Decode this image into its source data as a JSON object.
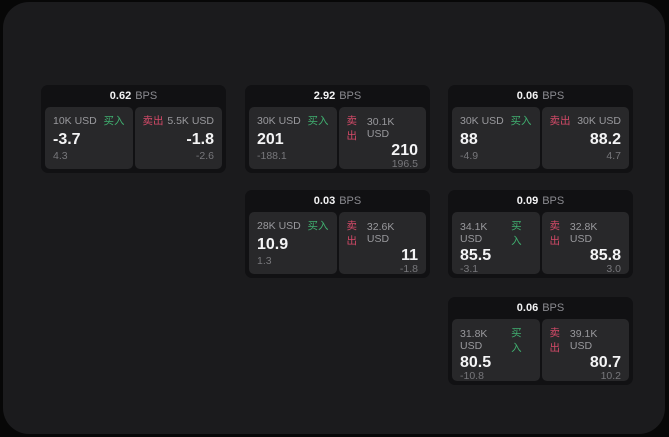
{
  "labels": {
    "bps_unit": "BPS",
    "buy": "买入",
    "sell": "卖出"
  },
  "colors": {
    "background": "#070707",
    "panel": "#1b1b1d",
    "card": "#111113",
    "tile": "#28282a",
    "buy_green": "#40b070",
    "sell_red": "#d44a68",
    "text_primary": "#f4f4f5",
    "text_muted": "#99999d",
    "text_dim": "#77777b"
  },
  "cards": [
    {
      "bps": "0.62",
      "buy": {
        "notional": "10K USD",
        "price": "-3.7",
        "delta": "4.3"
      },
      "sell": {
        "notional": "5.5K USD",
        "price": "-1.8",
        "delta": "-2.6"
      }
    },
    {
      "bps": "2.92",
      "buy": {
        "notional": "30K USD",
        "price": "201",
        "delta": "-188.1"
      },
      "sell": {
        "notional": "30.1K USD",
        "price": "210",
        "delta": "196.5"
      }
    },
    {
      "bps": "0.06",
      "buy": {
        "notional": "30K USD",
        "price": "88",
        "delta": "-4.9"
      },
      "sell": {
        "notional": "30K USD",
        "price": "88.2",
        "delta": "4.7"
      }
    },
    {
      "bps": "0.03",
      "buy": {
        "notional": "28K USD",
        "price": "10.9",
        "delta": "1.3"
      },
      "sell": {
        "notional": "32.6K USD",
        "price": "11",
        "delta": "-1.8"
      }
    },
    {
      "bps": "0.09",
      "buy": {
        "notional": "34.1K USD",
        "price": "85.5",
        "delta": "-3.1"
      },
      "sell": {
        "notional": "32.8K USD",
        "price": "85.8",
        "delta": "3.0"
      }
    },
    {
      "bps": "0.06",
      "buy": {
        "notional": "31.8K USD",
        "price": "80.5",
        "delta": "-10.8"
      },
      "sell": {
        "notional": "39.1K USD",
        "price": "80.7",
        "delta": "10.2"
      }
    }
  ]
}
